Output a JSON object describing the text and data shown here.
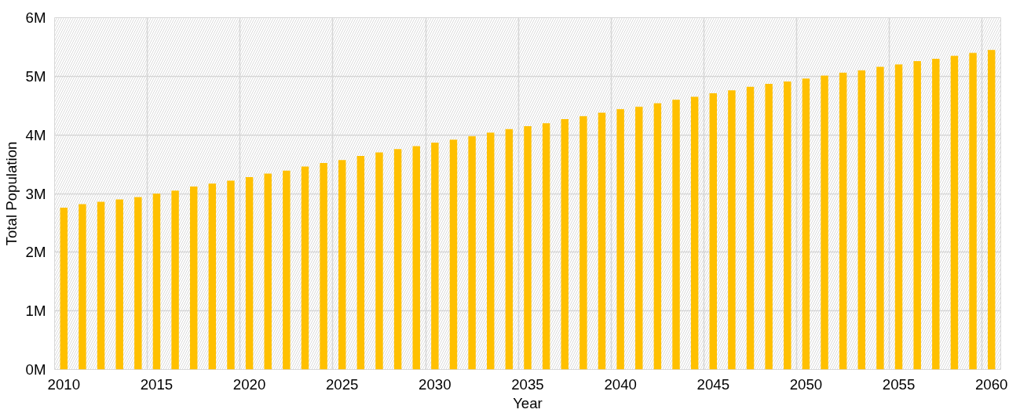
{
  "chart_data": {
    "type": "bar",
    "xlabel": "Year",
    "ylabel": "Total Population",
    "x": [
      2010,
      2011,
      2012,
      2013,
      2014,
      2015,
      2016,
      2017,
      2018,
      2019,
      2020,
      2021,
      2022,
      2023,
      2024,
      2025,
      2026,
      2027,
      2028,
      2029,
      2030,
      2031,
      2032,
      2033,
      2034,
      2035,
      2036,
      2037,
      2038,
      2039,
      2040,
      2041,
      2042,
      2043,
      2044,
      2045,
      2046,
      2047,
      2048,
      2049,
      2050,
      2051,
      2052,
      2053,
      2054,
      2055,
      2056,
      2057,
      2058,
      2059,
      2060
    ],
    "values": [
      2.76,
      2.82,
      2.86,
      2.9,
      2.94,
      3.0,
      3.05,
      3.12,
      3.17,
      3.22,
      3.28,
      3.34,
      3.39,
      3.46,
      3.52,
      3.57,
      3.64,
      3.7,
      3.76,
      3.81,
      3.87,
      3.92,
      3.98,
      4.04,
      4.1,
      4.15,
      4.2,
      4.27,
      4.32,
      4.38,
      4.44,
      4.48,
      4.54,
      4.6,
      4.65,
      4.71,
      4.76,
      4.82,
      4.87,
      4.91,
      4.96,
      5.01,
      5.06,
      5.1,
      5.16,
      5.2,
      5.26,
      5.3,
      5.35,
      5.4,
      5.45
    ],
    "color": "#ffc000",
    "xlim": [
      2009.5,
      2060.5
    ],
    "xticks": [
      2010,
      2015,
      2020,
      2025,
      2030,
      2035,
      2040,
      2045,
      2050,
      2055,
      2060
    ],
    "ylim": [
      0,
      6
    ],
    "yticks": [
      {
        "value": 0,
        "label": "0M"
      },
      {
        "value": 1,
        "label": "1M"
      },
      {
        "value": 2,
        "label": "2M"
      },
      {
        "value": 3,
        "label": "3M"
      },
      {
        "value": 4,
        "label": "4M"
      },
      {
        "value": 5,
        "label": "5M"
      },
      {
        "value": 6,
        "label": "6M"
      }
    ],
    "grid": true
  }
}
